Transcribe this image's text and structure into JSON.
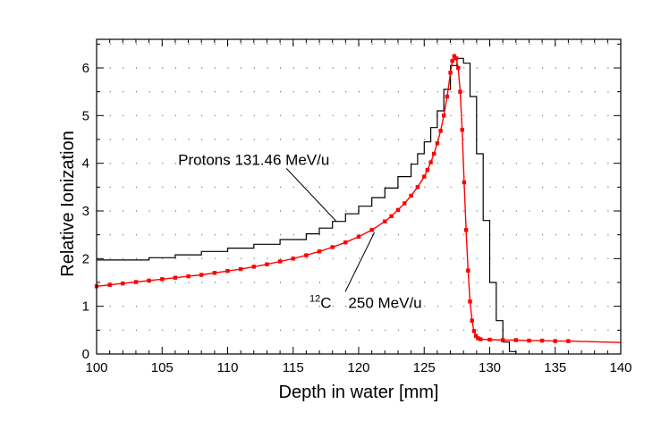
{
  "chart_data": {
    "type": "line",
    "xlabel": "Depth in water [mm]",
    "ylabel": "Relative Ionization",
    "xlim": [
      100,
      140
    ],
    "ylim": [
      0,
      6.6
    ],
    "x_ticks": [
      100,
      105,
      110,
      115,
      120,
      125,
      130,
      135,
      140
    ],
    "y_ticks": [
      0,
      1,
      2,
      3,
      4,
      5,
      6
    ],
    "grid": "dotted",
    "colors": {
      "carbon": "#ff0000",
      "protons": "#000000"
    },
    "series": [
      {
        "name": "Protons 131.46 MeV/u",
        "style": "step",
        "x": [
          100,
          104,
          106,
          108,
          110,
          112,
          114,
          116,
          117,
          118,
          119,
          120,
          121,
          122,
          123,
          124,
          124.5,
          125,
          125.5,
          126,
          126.5,
          127,
          127.5,
          128,
          128.5,
          129,
          129.5,
          130,
          130.5,
          131,
          131.5,
          132
        ],
        "y": [
          1.97,
          2.02,
          2.08,
          2.15,
          2.22,
          2.3,
          2.4,
          2.52,
          2.64,
          2.78,
          2.94,
          3.1,
          3.28,
          3.48,
          3.72,
          3.98,
          4.2,
          4.45,
          4.75,
          5.1,
          5.55,
          6.05,
          6.2,
          6.1,
          5.4,
          4.2,
          2.8,
          1.5,
          0.7,
          0.25,
          0.05,
          0.0
        ]
      },
      {
        "name": "12C 250 MeV/u",
        "style": "line-markers",
        "x": [
          100,
          101,
          102,
          103,
          104,
          105,
          106,
          107,
          108,
          109,
          110,
          111,
          112,
          113,
          114,
          115,
          116,
          117,
          118,
          119,
          120,
          121,
          122,
          122.5,
          123,
          123.5,
          124,
          124.5,
          125,
          125.25,
          125.5,
          125.75,
          126,
          126.25,
          126.5,
          126.75,
          127,
          127.15,
          127.3,
          127.45,
          127.6,
          127.75,
          127.9,
          128.05,
          128.2,
          128.35,
          128.5,
          128.65,
          128.8,
          128.95,
          129.1,
          129.3,
          130,
          131,
          132,
          133,
          134,
          135,
          136,
          140
        ],
        "y": [
          1.42,
          1.45,
          1.48,
          1.51,
          1.54,
          1.57,
          1.6,
          1.63,
          1.66,
          1.7,
          1.74,
          1.78,
          1.83,
          1.88,
          1.94,
          2.0,
          2.07,
          2.15,
          2.24,
          2.34,
          2.46,
          2.6,
          2.78,
          2.89,
          3.02,
          3.16,
          3.32,
          3.5,
          3.72,
          3.86,
          4.02,
          4.2,
          4.42,
          4.68,
          5.0,
          5.4,
          5.9,
          6.15,
          6.25,
          6.2,
          6.0,
          5.5,
          4.7,
          3.6,
          2.6,
          1.75,
          1.1,
          0.7,
          0.48,
          0.38,
          0.33,
          0.31,
          0.3,
          0.29,
          0.29,
          0.28,
          0.28,
          0.27,
          0.27,
          0.24
        ]
      }
    ],
    "annotations": [
      {
        "name": "protons-label",
        "text": "Protons 131.46 MeV/u",
        "x": 113.8,
        "y": 4.08,
        "arrow_to": [
          118.3,
          2.78
        ]
      },
      {
        "name": "carbon-label",
        "text_sup": "12",
        "text": "C  250 MeV/u",
        "x": 115.7,
        "y": 1.08,
        "arrow_to": [
          121.2,
          2.55
        ]
      }
    ]
  }
}
